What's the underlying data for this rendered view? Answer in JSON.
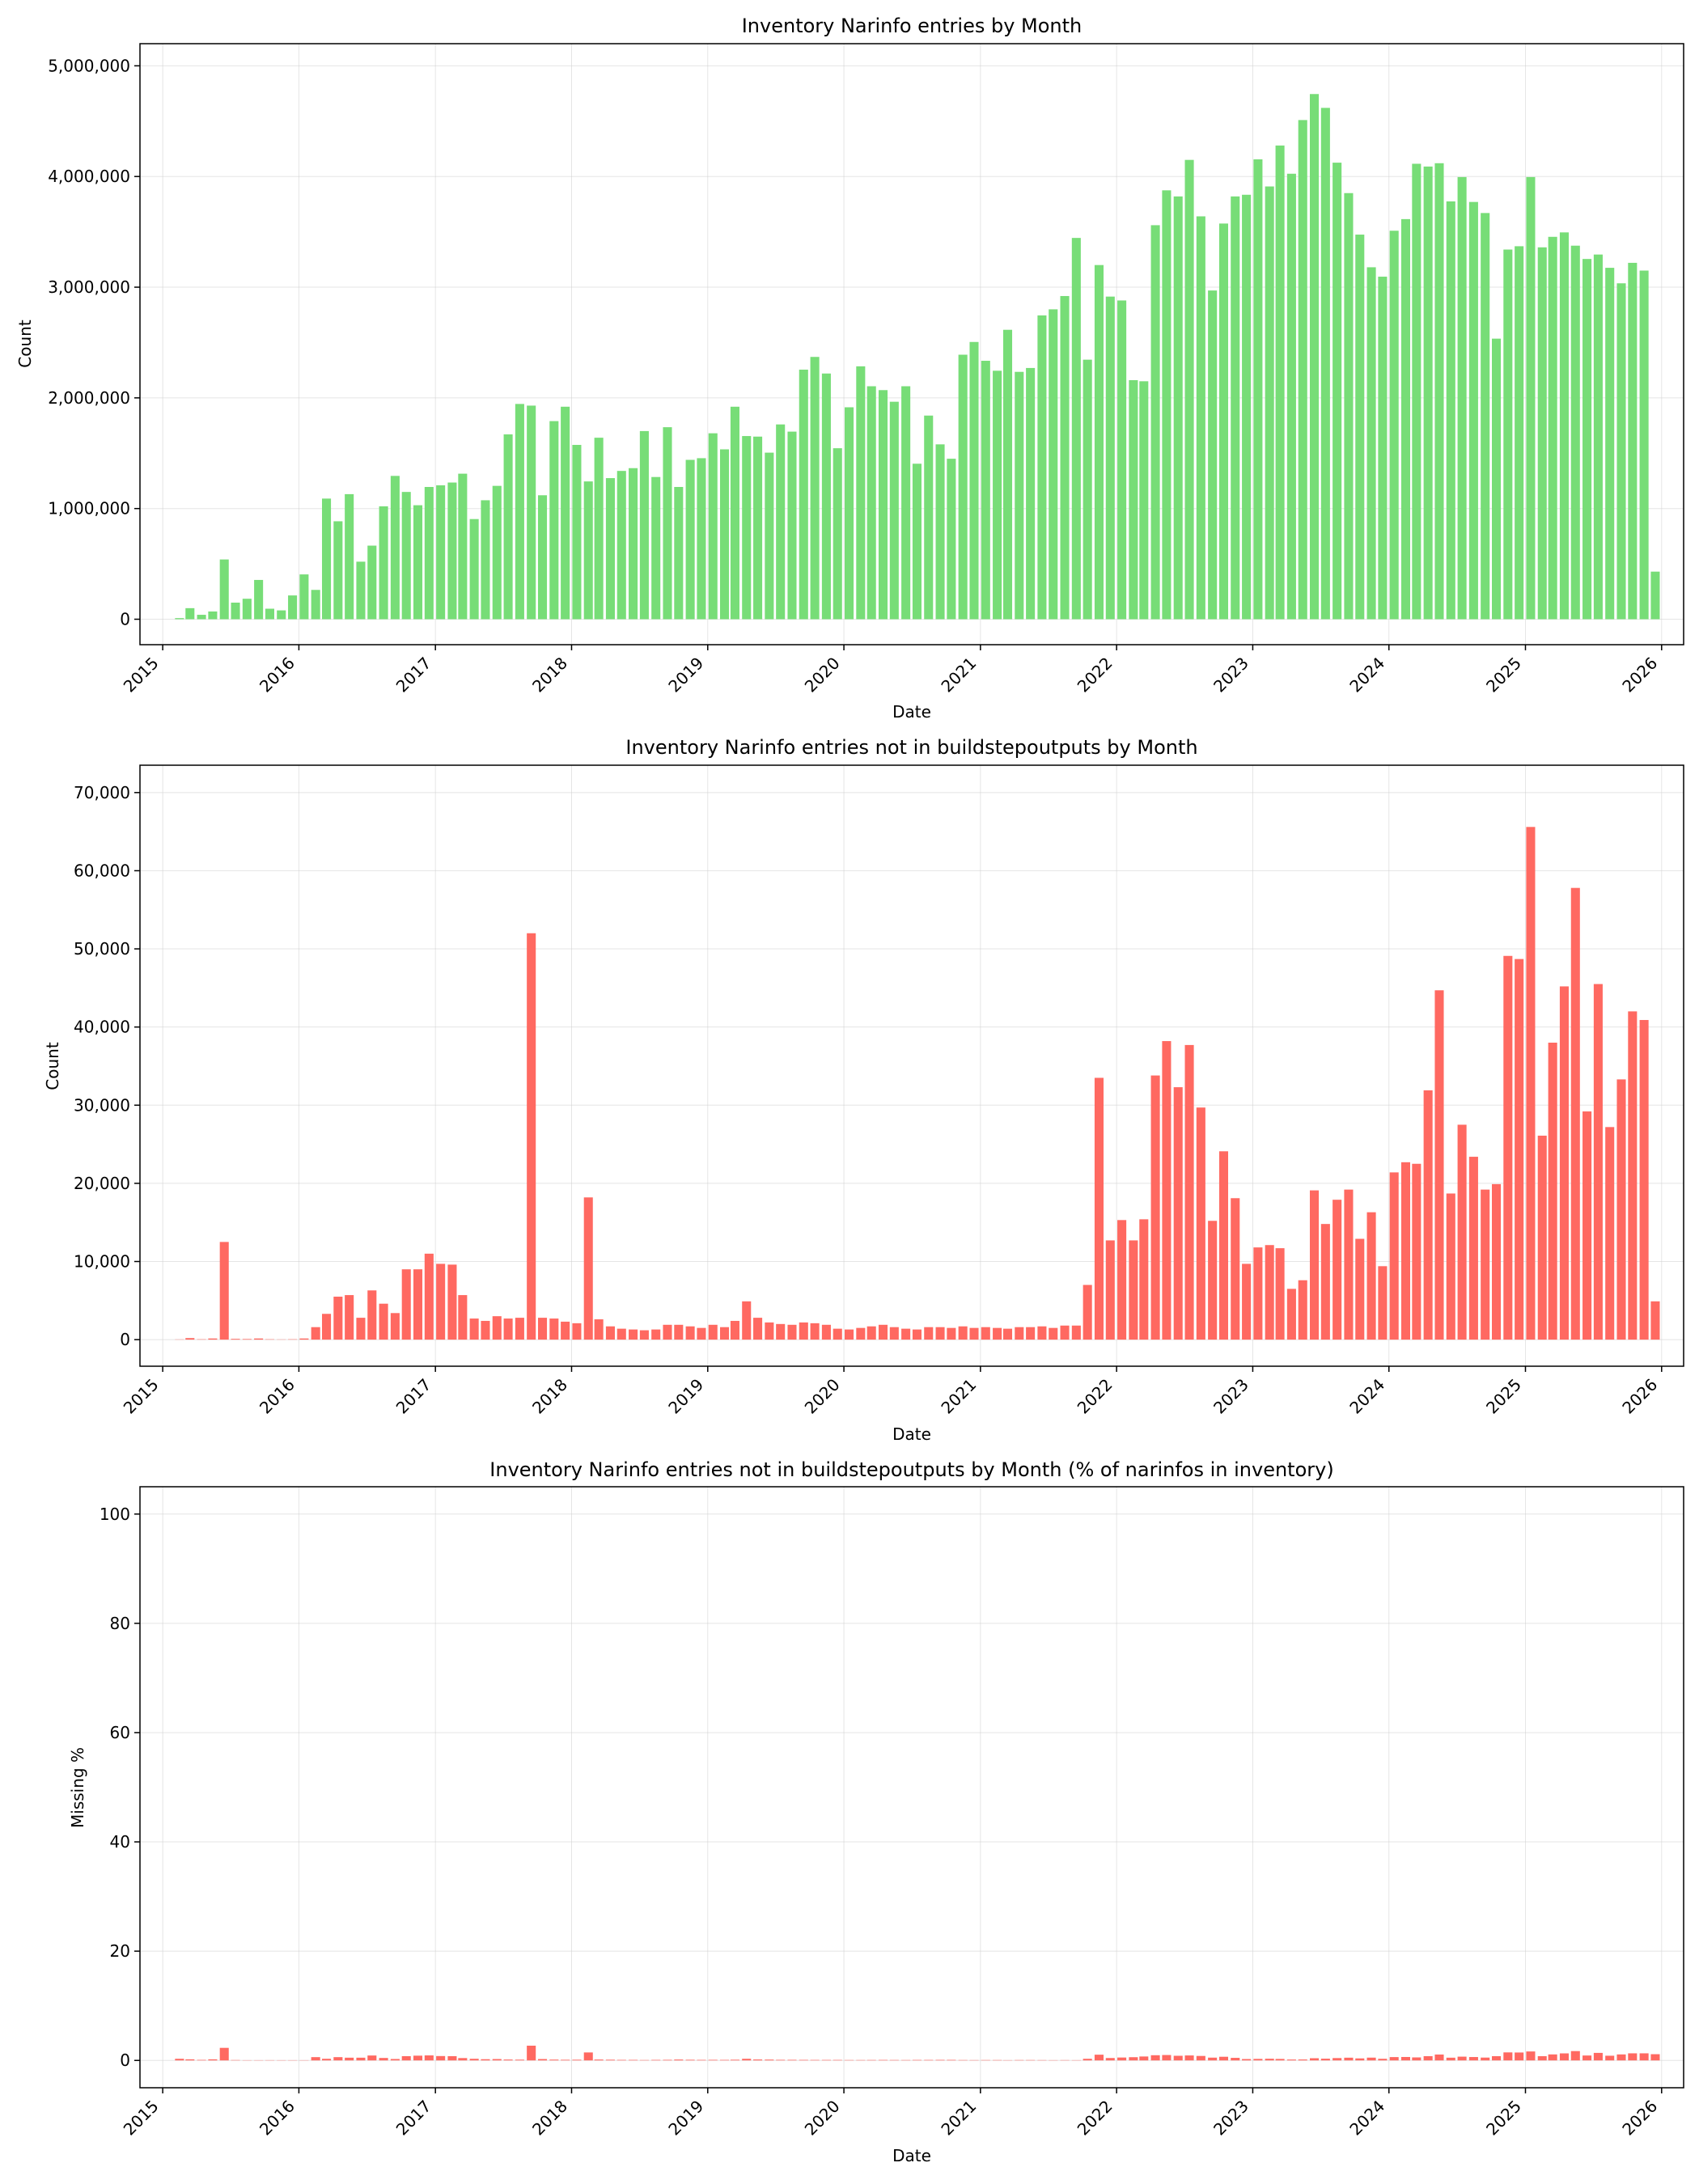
{
  "chart_data": [
    {
      "type": "bar",
      "title": "Inventory Narinfo entries by Month",
      "xlabel": "Date",
      "ylabel": "Count",
      "color": "#77dd77",
      "x_start": "2015-02",
      "xlim": [
        "2014-11-01",
        "2026-03-01"
      ],
      "ylim": [
        -230000,
        5200000
      ],
      "xticks": [
        "2015",
        "2016",
        "2017",
        "2018",
        "2019",
        "2020",
        "2021",
        "2022",
        "2023",
        "2024",
        "2025",
        "2026"
      ],
      "yticks": [
        0,
        1000000,
        2000000,
        3000000,
        4000000,
        5000000
      ],
      "ytick_labels": [
        "0",
        "1,000,000",
        "2,000,000",
        "3,000,000",
        "4,000,000",
        "5,000,000"
      ],
      "grid": true,
      "values": [
        10000,
        100000,
        40000,
        70000,
        540000,
        150000,
        185000,
        355000,
        95000,
        80000,
        215000,
        405000,
        265000,
        1090000,
        885000,
        1130000,
        520000,
        665000,
        1020000,
        1295000,
        1150000,
        1030000,
        1195000,
        1210000,
        1235000,
        1315000,
        905000,
        1075000,
        1205000,
        1670000,
        1945000,
        1930000,
        1120000,
        1790000,
        1920000,
        1575000,
        1245000,
        1640000,
        1275000,
        1340000,
        1365000,
        1700000,
        1285000,
        1735000,
        1195000,
        1440000,
        1455000,
        1680000,
        1535000,
        1920000,
        1655000,
        1650000,
        1505000,
        1760000,
        1695000,
        2255000,
        2370000,
        2220000,
        1545000,
        1915000,
        2285000,
        2105000,
        2070000,
        1965000,
        2105000,
        1405000,
        1840000,
        1580000,
        1450000,
        2390000,
        2505000,
        2335000,
        2245000,
        2615000,
        2235000,
        2270000,
        2745000,
        2800000,
        2920000,
        3445000,
        2345000,
        3200000,
        2915000,
        2880000,
        2160000,
        2150000,
        3560000,
        3875000,
        3820000,
        4150000,
        3640000,
        2970000,
        3575000,
        3820000,
        3835000,
        4155000,
        3910000,
        4280000,
        4025000,
        4510000,
        4745000,
        4620000,
        4125000,
        3850000,
        3475000,
        3180000,
        3095000,
        3510000,
        3615000,
        4115000,
        4090000,
        4120000,
        3775000,
        3995000,
        3770000,
        3670000,
        2535000,
        3340000,
        3370000,
        3995000,
        3360000,
        3455000,
        3495000,
        3375000,
        3255000,
        3295000,
        3175000,
        3035000,
        3220000,
        3150000,
        430000
      ]
    },
    {
      "type": "bar",
      "title": "Inventory Narinfo entries not in buildstepoutputs by Month",
      "xlabel": "Date",
      "ylabel": "Count",
      "color": "#ff6961",
      "x_start": "2015-02",
      "xlim": [
        "2014-11-01",
        "2026-03-01"
      ],
      "ylim": [
        -3400,
        73500
      ],
      "xticks": [
        "2015",
        "2016",
        "2017",
        "2018",
        "2019",
        "2020",
        "2021",
        "2022",
        "2023",
        "2024",
        "2025",
        "2026"
      ],
      "yticks": [
        0,
        10000,
        20000,
        30000,
        40000,
        50000,
        60000,
        70000
      ],
      "ytick_labels": [
        "0",
        "10,000",
        "20,000",
        "30,000",
        "40,000",
        "50,000",
        "60,000",
        "70,000"
      ],
      "grid": true,
      "values": [
        30,
        200,
        50,
        150,
        12500,
        100,
        80,
        150,
        50,
        30,
        50,
        150,
        1600,
        3300,
        5500,
        5700,
        2800,
        6300,
        4600,
        3400,
        9000,
        9000,
        11000,
        9700,
        9600,
        5700,
        2700,
        2400,
        3000,
        2700,
        2800,
        52000,
        2800,
        2700,
        2300,
        2100,
        18200,
        2600,
        1700,
        1400,
        1300,
        1200,
        1300,
        1900,
        1900,
        1700,
        1500,
        1900,
        1600,
        2400,
        4900,
        2800,
        2200,
        2000,
        1900,
        2200,
        2100,
        1900,
        1400,
        1300,
        1500,
        1700,
        1900,
        1600,
        1400,
        1300,
        1600,
        1600,
        1500,
        1700,
        1500,
        1600,
        1500,
        1400,
        1600,
        1600,
        1700,
        1500,
        1800,
        1800,
        7000,
        33500,
        12700,
        15300,
        12700,
        15400,
        33800,
        38200,
        32300,
        37700,
        29700,
        15200,
        24100,
        18100,
        9700,
        11800,
        12100,
        11700,
        6500,
        7600,
        19100,
        14800,
        17900,
        19200,
        12900,
        16300,
        9400,
        21400,
        22700,
        22500,
        31900,
        44700,
        18700,
        27500,
        23400,
        19200,
        19900,
        49100,
        48700,
        65600,
        26100,
        38000,
        45200,
        57800,
        29200,
        45500,
        27200,
        33300,
        42000,
        40900,
        4900
      ]
    },
    {
      "type": "bar",
      "title": "Inventory Narinfo entries not in buildstepoutputs by Month (% of narinfos in inventory)",
      "xlabel": "Date",
      "ylabel": "Missing %",
      "color": "#ff6961",
      "x_start": "2015-02",
      "xlim": [
        "2014-11-01",
        "2026-03-01"
      ],
      "ylim": [
        -5,
        105
      ],
      "xticks": [
        "2015",
        "2016",
        "2017",
        "2018",
        "2019",
        "2020",
        "2021",
        "2022",
        "2023",
        "2024",
        "2025",
        "2026"
      ],
      "yticks": [
        0,
        20,
        40,
        60,
        80,
        100
      ],
      "ytick_labels": [
        "0",
        "20",
        "40",
        "60",
        "80",
        "100"
      ],
      "grid": true,
      "values": [
        0.3,
        0.2,
        0.1,
        0.2,
        2.3,
        0.07,
        0.04,
        0.04,
        0.05,
        0.04,
        0.02,
        0.04,
        0.6,
        0.3,
        0.6,
        0.5,
        0.5,
        0.9,
        0.45,
        0.26,
        0.78,
        0.87,
        0.92,
        0.8,
        0.78,
        0.43,
        0.3,
        0.22,
        0.25,
        0.16,
        0.14,
        2.7,
        0.25,
        0.15,
        0.12,
        0.13,
        1.46,
        0.16,
        0.13,
        0.1,
        0.1,
        0.07,
        0.1,
        0.11,
        0.16,
        0.12,
        0.1,
        0.11,
        0.1,
        0.13,
        0.3,
        0.17,
        0.15,
        0.11,
        0.11,
        0.1,
        0.09,
        0.09,
        0.09,
        0.07,
        0.07,
        0.08,
        0.09,
        0.08,
        0.07,
        0.09,
        0.09,
        0.1,
        0.1,
        0.07,
        0.06,
        0.07,
        0.07,
        0.05,
        0.07,
        0.07,
        0.06,
        0.05,
        0.06,
        0.05,
        0.3,
        1.05,
        0.44,
        0.53,
        0.59,
        0.72,
        0.95,
        0.99,
        0.85,
        0.91,
        0.82,
        0.51,
        0.67,
        0.47,
        0.25,
        0.28,
        0.31,
        0.27,
        0.16,
        0.17,
        0.4,
        0.32,
        0.43,
        0.5,
        0.37,
        0.51,
        0.3,
        0.61,
        0.63,
        0.55,
        0.78,
        1.08,
        0.5,
        0.69,
        0.62,
        0.52,
        0.78,
        1.47,
        1.45,
        1.64,
        0.78,
        1.1,
        1.29,
        1.71,
        0.9,
        1.38,
        0.86,
        1.1,
        1.3,
        1.3,
        1.14
      ]
    }
  ]
}
